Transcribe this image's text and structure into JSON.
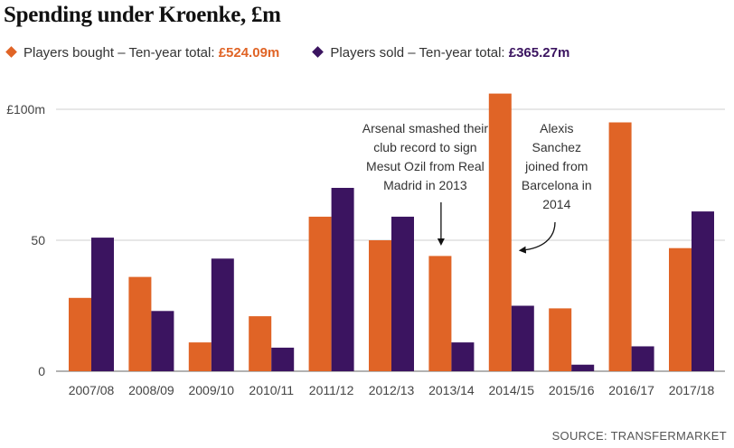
{
  "title": "Spending under Kroenke, £m",
  "legend": [
    {
      "label": "Players bought – Ten-year total: ",
      "total": "£524.09m",
      "color": "#e06426"
    },
    {
      "label": "Players sold – Ten-year total: ",
      "total": "£365.27m",
      "color": "#3b1460"
    }
  ],
  "source": "SOURCE: TRANSFERMARKET",
  "chart_data": {
    "type": "bar",
    "categories": [
      "2007/08",
      "2008/09",
      "2009/10",
      "2010/11",
      "2011/12",
      "2012/13",
      "2013/14",
      "2014/15",
      "2015/16",
      "2016/17",
      "2017/18"
    ],
    "series": [
      {
        "name": "Players bought",
        "color": "#e06426",
        "values": [
          28,
          36,
          11,
          21,
          59,
          50,
          44,
          106,
          24,
          95,
          47
        ]
      },
      {
        "name": "Players sold",
        "color": "#3b1460",
        "values": [
          51,
          23,
          43,
          9,
          70,
          59,
          11,
          25,
          2.5,
          9.5,
          61
        ]
      }
    ],
    "ylim": [
      0,
      100
    ],
    "yticks": [
      {
        "value": 0,
        "label": "0"
      },
      {
        "value": 50,
        "label": "50"
      },
      {
        "value": 100,
        "label": "£100m"
      }
    ],
    "grid": true,
    "legend_position": "top-left",
    "annotations": [
      {
        "category": "2013/14",
        "lines": [
          "Arsenal smashed their",
          "club record to sign",
          "Mesut Ozil from Real",
          "Madrid in 2013"
        ]
      },
      {
        "category": "2014/15",
        "lines": [
          "Alexis",
          "Sanchez",
          "joined from",
          "Barcelona in",
          "2014"
        ]
      }
    ]
  }
}
